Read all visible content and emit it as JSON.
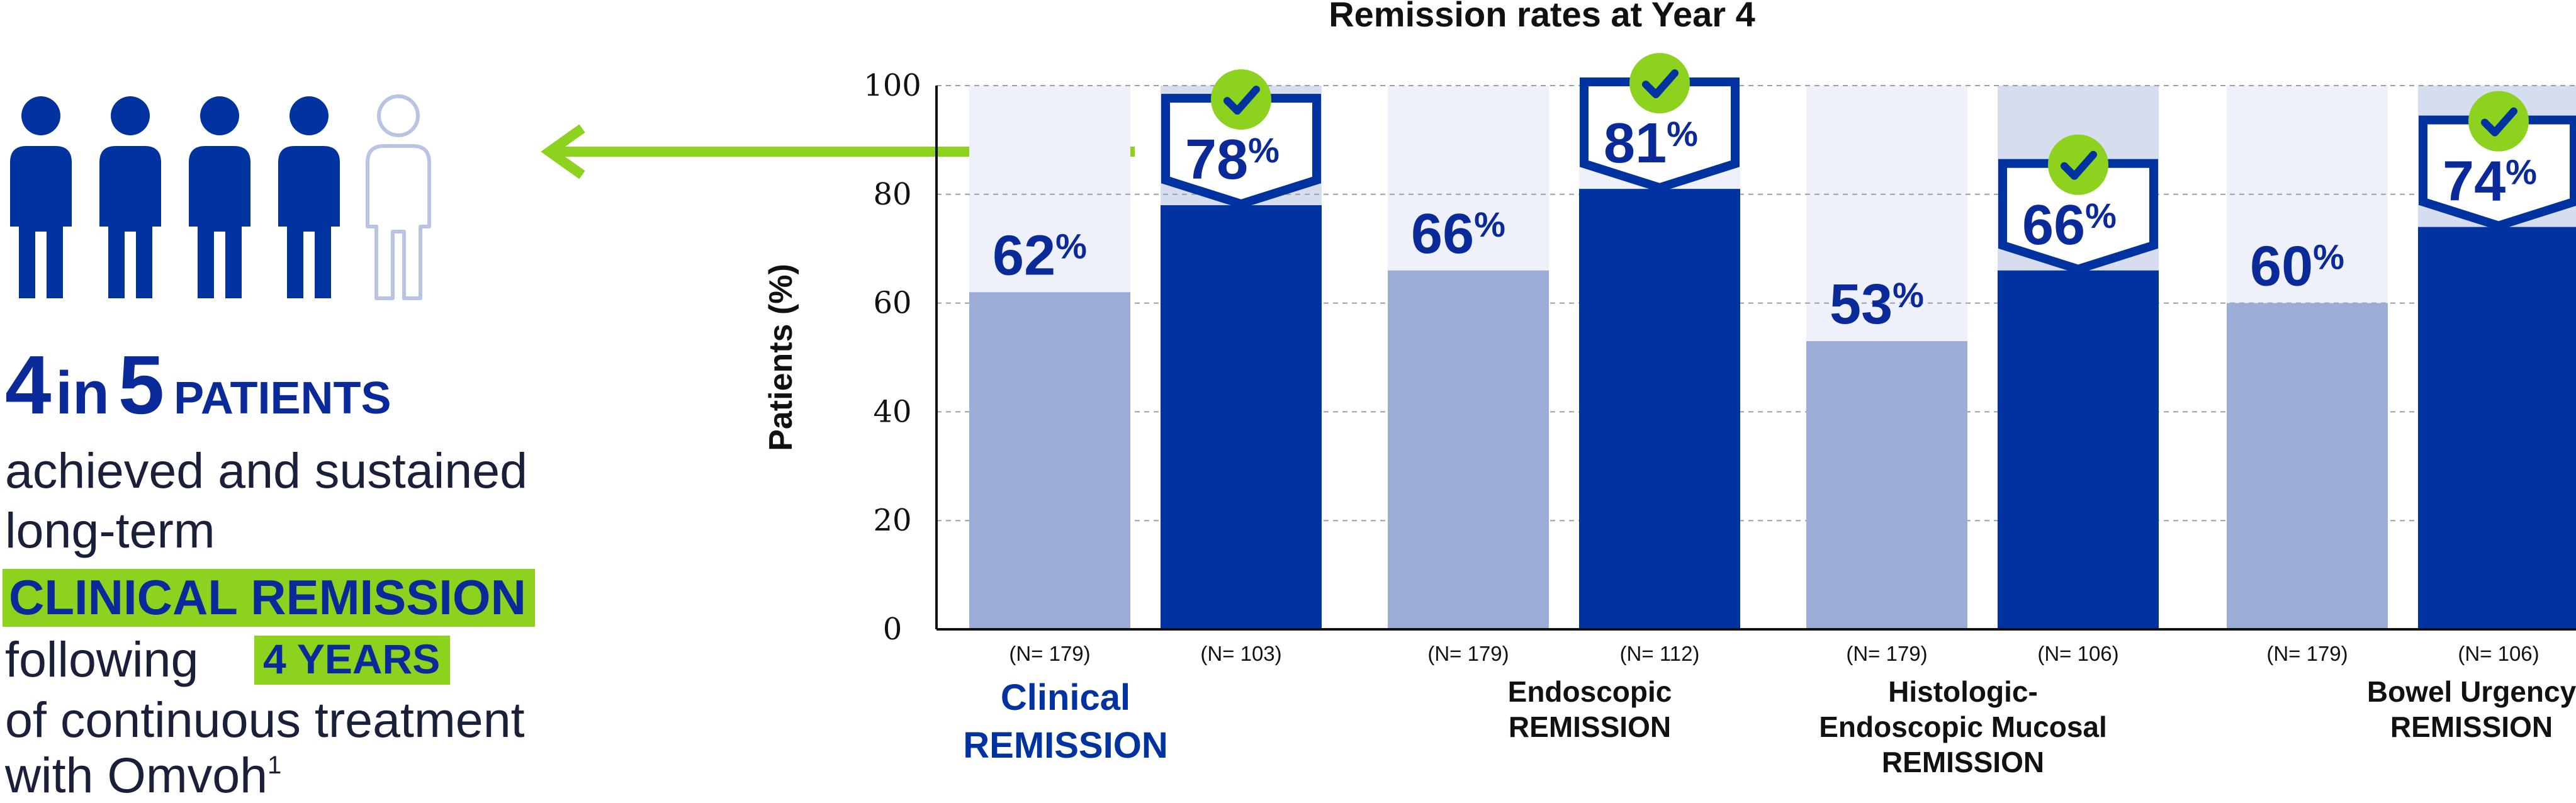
{
  "left": {
    "headline_num1": "4",
    "headline_in": "in",
    "headline_num2": "5",
    "headline_patients": "PATIENTS",
    "line1": "achieved and sustained",
    "line2": "long-term",
    "highlight1": "CLINICAL REMISSION",
    "line3": "following",
    "highlight2": "4 YEARS",
    "line4": "of continuous treatment",
    "line5": "with Omvoh",
    "footnote": "1",
    "people": {
      "total": 5,
      "filled": 4
    }
  },
  "colors": {
    "dark": "#0033a0",
    "light": "#9badd6",
    "bg_light": "#eef1fa",
    "bg_highlight": "#d6ddef",
    "green": "#8dd21f",
    "text_dark": "#0a2a9a"
  },
  "icons": {
    "person": "person-icon",
    "check": "checkmark-icon",
    "arrow": "arrow-left-icon"
  },
  "chart_data": {
    "type": "bar",
    "title": "Remission rates at Year 4",
    "ylabel": "Patients (%)",
    "ylim": [
      0,
      100
    ],
    "yticks": [
      0,
      20,
      40,
      60,
      80,
      100
    ],
    "grid": true,
    "categories": [
      "Clinical REMISSION",
      "Endoscopic REMISSION",
      "Histologic-Endoscopic Mucosal REMISSION",
      "Bowel Urgency REMISSION"
    ],
    "groups": [
      {
        "label_lines": [
          "Clinical",
          "REMISSION"
        ],
        "bars": [
          {
            "value": 62,
            "n": "(N= 179)"
          },
          {
            "value": 78,
            "n": "(N= 103)"
          }
        ]
      },
      {
        "label_lines": [
          "Endoscopic",
          "REMISSION"
        ],
        "bars": [
          {
            "value": 66,
            "n": "(N= 179)"
          },
          {
            "value": 81,
            "n": "(N= 112)"
          }
        ]
      },
      {
        "label_lines": [
          "Histologic-",
          "Endoscopic Mucosal",
          "REMISSION"
        ],
        "bars": [
          {
            "value": 53,
            "n": "(N= 179)"
          },
          {
            "value": 66,
            "n": "(N= 106)"
          }
        ]
      },
      {
        "label_lines": [
          "Bowel Urgency",
          "REMISSION"
        ],
        "bars": [
          {
            "value": 60,
            "n": "(N= 179)"
          },
          {
            "value": 74,
            "n": "(N= 106)"
          }
        ]
      }
    ],
    "pct_sign": "%"
  }
}
